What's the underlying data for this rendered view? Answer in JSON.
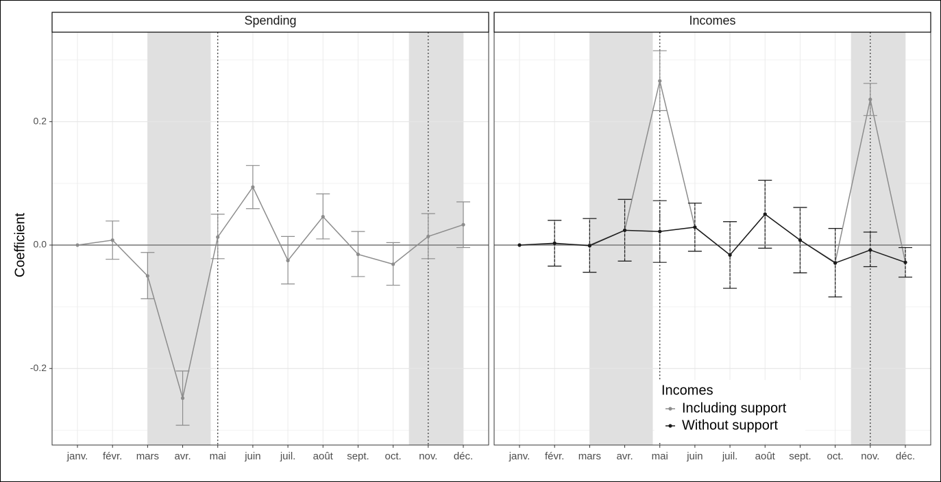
{
  "chart_data": [
    {
      "type": "line",
      "title": "Spending",
      "y_label": "Coefficient",
      "categories": [
        "janv.",
        "févr.",
        "mars",
        "avr.",
        "mai",
        "juin",
        "juil.",
        "août",
        "sept.",
        "oct.",
        "nov.",
        "déc."
      ],
      "series": [
        {
          "name": "Spending",
          "color": "#8c8c8c",
          "values": [
            0,
            0.008,
            -0.05,
            -0.248,
            0.013,
            0.094,
            -0.025,
            0.046,
            -0.015,
            -0.031,
            0.014,
            0.033
          ],
          "lower": [
            null,
            -0.023,
            -0.087,
            -0.292,
            -0.022,
            0.059,
            -0.063,
            0.01,
            -0.051,
            -0.065,
            -0.022,
            -0.004
          ],
          "upper": [
            null,
            0.039,
            -0.012,
            -0.204,
            0.05,
            0.129,
            0.014,
            0.083,
            0.022,
            0.004,
            0.051,
            0.07
          ]
        }
      ],
      "ylim": [
        -0.324,
        0.345
      ],
      "yticks": [
        {
          "value": -0.2,
          "label": "-0.2"
        },
        {
          "value": 0,
          "label": "0.0"
        },
        {
          "value": 0.2,
          "label": "0.2"
        }
      ],
      "minor_yticks": [
        -0.3,
        -0.1,
        0.1,
        0.3
      ],
      "zero_line": 0,
      "shaded_spans": [
        [
          3,
          4.8
        ],
        [
          10.45,
          12
        ]
      ],
      "dotted_lines": [
        5,
        11
      ],
      "grid": true
    },
    {
      "type": "line",
      "title": "Incomes",
      "categories": [
        "janv.",
        "févr.",
        "mars",
        "avr.",
        "mai",
        "juin",
        "juil.",
        "août",
        "sept.",
        "oct.",
        "nov.",
        "déc."
      ],
      "legend": {
        "title": "Incomes",
        "position": "bottom-right"
      },
      "series": [
        {
          "name": "Including support",
          "color": "#8c8c8c",
          "values": [
            0,
            0.002,
            0,
            0.024,
            0.266,
            0.029,
            -0.016,
            0.05,
            0.008,
            -0.028,
            0.236,
            -0.028
          ],
          "lower": [
            null,
            -0.034,
            -0.044,
            -0.026,
            0.218,
            -0.01,
            -0.07,
            -0.005,
            -0.045,
            -0.084,
            0.21,
            -0.052
          ],
          "upper": [
            null,
            0.04,
            0.043,
            0.074,
            0.315,
            0.068,
            0.038,
            0.105,
            0.061,
            0.027,
            0.262,
            -0.004
          ]
        },
        {
          "name": "Without support",
          "color": "#1a1a1a",
          "values": [
            0,
            0.003,
            -0.001,
            0.024,
            0.022,
            0.029,
            -0.016,
            0.05,
            0.008,
            -0.029,
            -0.008,
            -0.028
          ],
          "lower": [
            null,
            -0.034,
            -0.044,
            -0.026,
            -0.028,
            -0.01,
            -0.07,
            -0.005,
            -0.045,
            -0.084,
            -0.035,
            -0.052
          ],
          "upper": [
            null,
            0.04,
            0.043,
            0.074,
            0.072,
            0.068,
            0.038,
            0.105,
            0.061,
            0.027,
            0.021,
            -0.004
          ]
        }
      ],
      "ylim": [
        -0.324,
        0.345
      ],
      "yticks": [
        {
          "value": -0.2,
          "label": "-0.2"
        },
        {
          "value": 0,
          "label": "0.0"
        },
        {
          "value": 0.2,
          "label": "0.2"
        }
      ],
      "minor_yticks": [
        -0.3,
        -0.1,
        0.1,
        0.3
      ],
      "zero_line": 0,
      "shaded_spans": [
        [
          3,
          4.8
        ],
        [
          10.45,
          12
        ]
      ],
      "dotted_lines": [
        5,
        11
      ],
      "grid": true
    }
  ]
}
